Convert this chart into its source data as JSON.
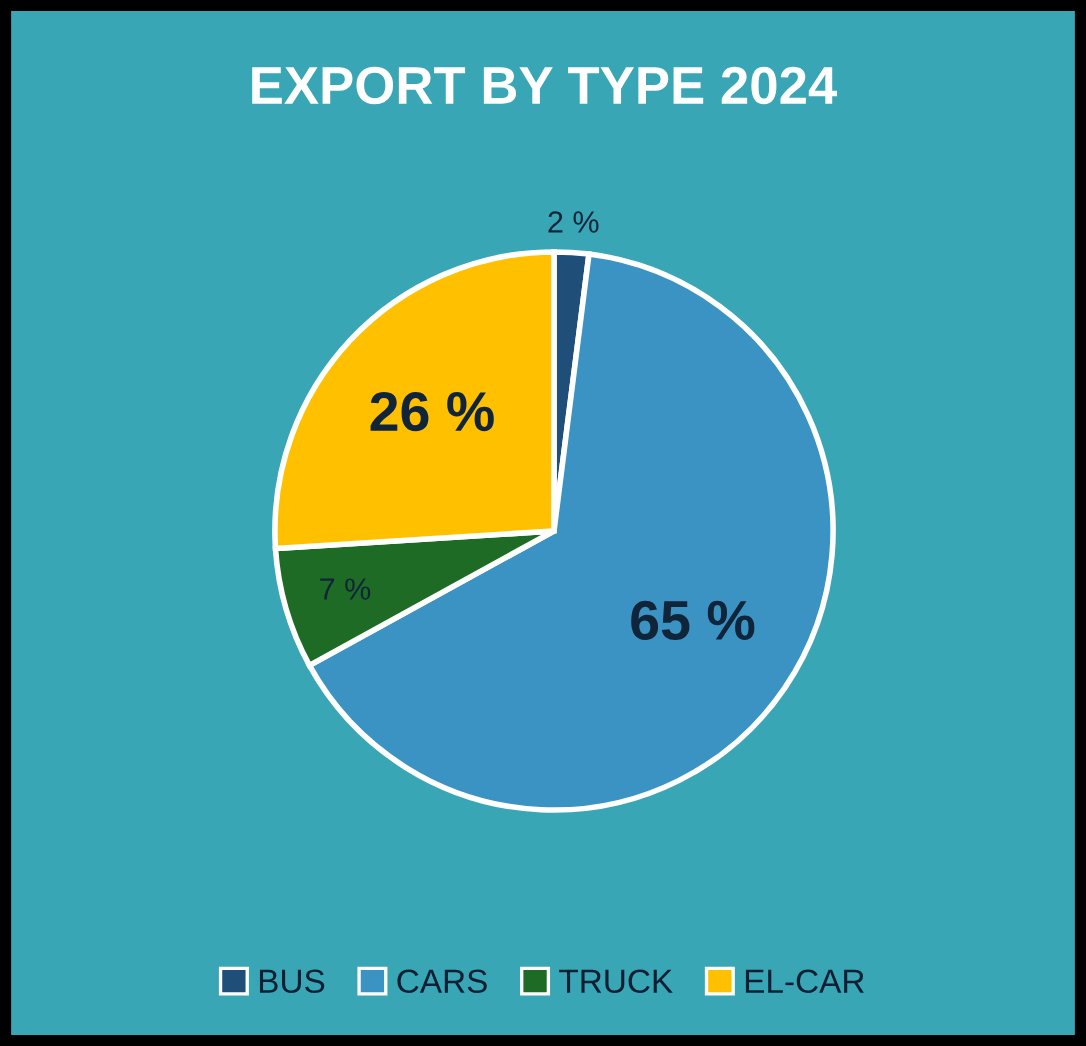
{
  "chart_data": {
    "type": "pie",
    "title": "EXPORT BY TYPE 2024",
    "categories": [
      "BUS",
      "CARS",
      "TRUCK",
      "EL-CAR"
    ],
    "values": [
      2,
      65,
      7,
      26
    ],
    "value_labels": [
      "2 %",
      "65 %",
      "7 %",
      "26 %"
    ],
    "colors": [
      "#1f4e79",
      "#3a93c3",
      "#1e6b25",
      "#ffc000"
    ],
    "legend": "bottom"
  }
}
